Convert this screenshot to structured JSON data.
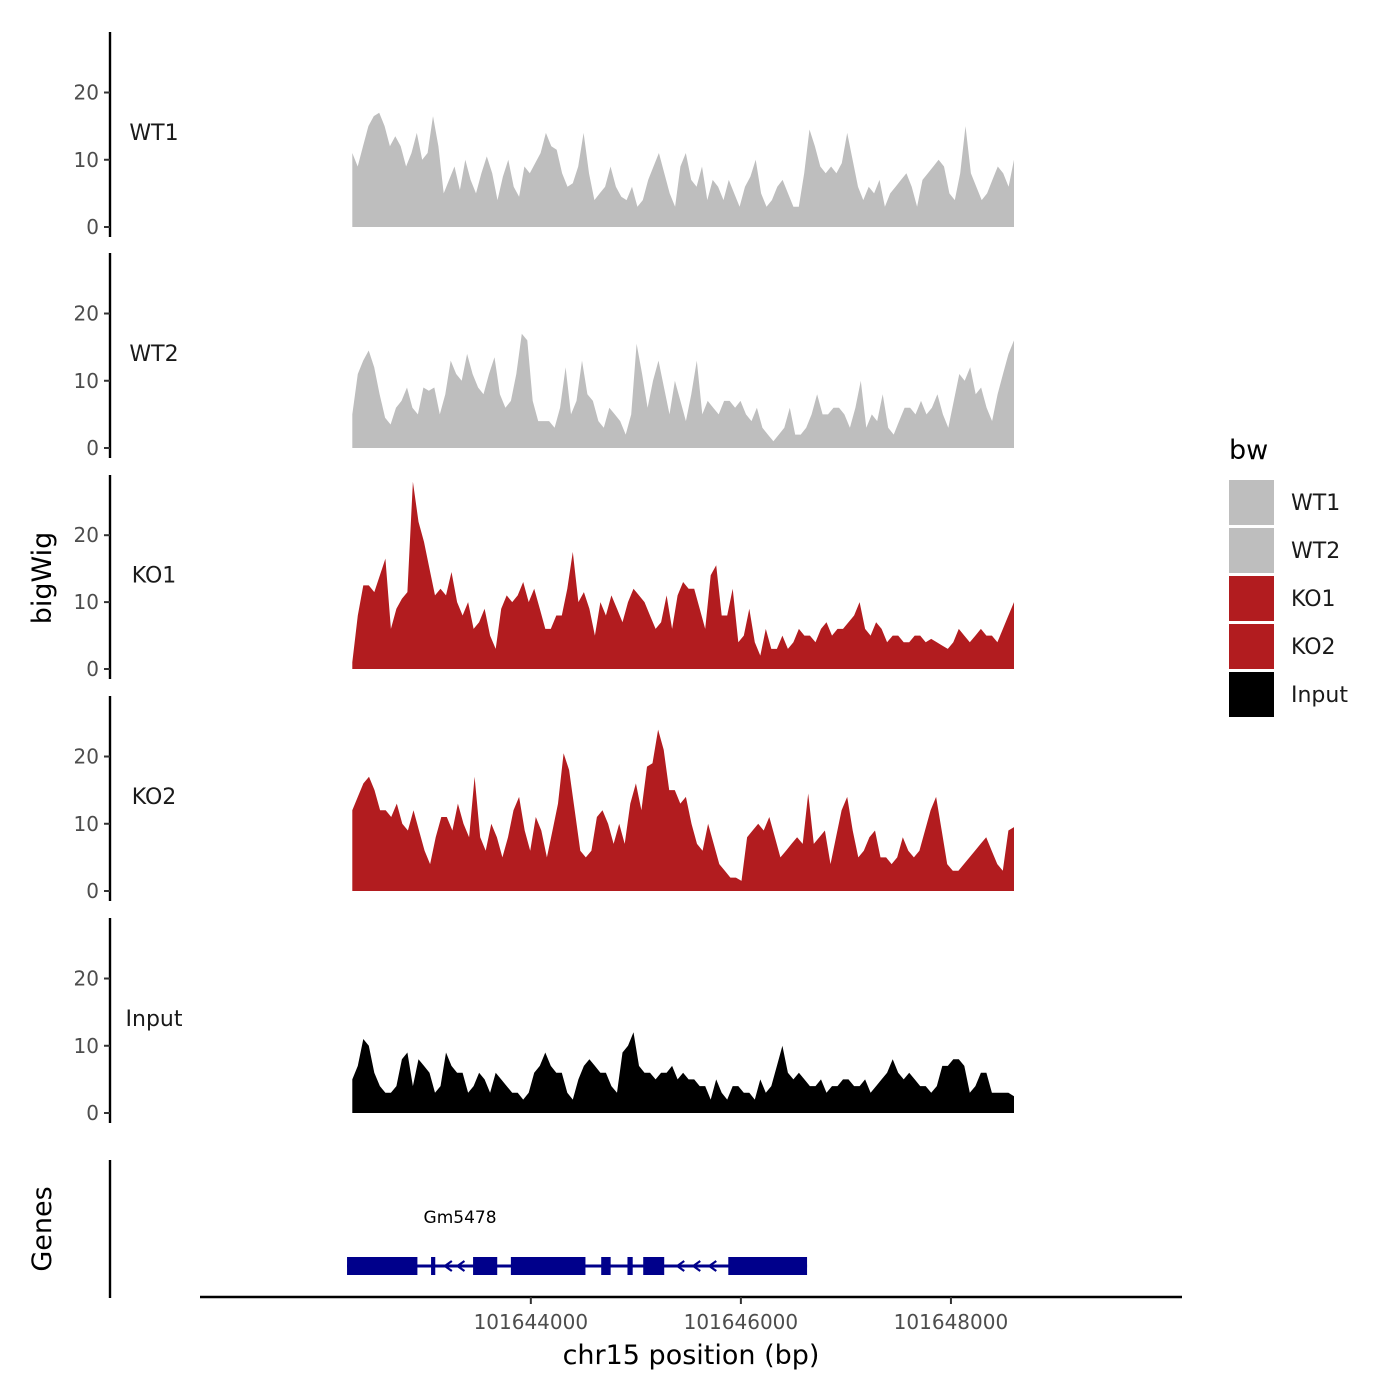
{
  "chart_data": {
    "type": "area",
    "chromosome": "chr15",
    "xlabel": "chr15 position (bp)",
    "ylabel": "bigWig",
    "genes_label": "Genes",
    "xlim": [
      101640850,
      101650200
    ],
    "x_ticks": [
      101644000,
      101646000,
      101648000
    ],
    "x_tick_labels": [
      "101644000",
      "101646000",
      "101648000"
    ],
    "ylim": [
      0,
      29
    ],
    "y_ticks": [
      0,
      10,
      20
    ],
    "y_tick_labels": [
      "0",
      "10",
      "20"
    ],
    "region": [
      101642300,
      101648600
    ],
    "legend": {
      "title": "bw",
      "entries": [
        {
          "label": "WT1",
          "color": "#bebebe"
        },
        {
          "label": "WT2",
          "color": "#bebebe"
        },
        {
          "label": "KO1",
          "color": "#b21c1f"
        },
        {
          "label": "KO2",
          "color": "#b21c1f"
        },
        {
          "label": "Input",
          "color": "#000000"
        }
      ]
    },
    "series": [
      {
        "name": "WT1",
        "color": "#bebebe",
        "values": [
          11,
          9,
          12,
          15,
          16.5,
          17,
          15,
          12,
          13.5,
          12,
          9,
          11,
          14,
          10,
          11,
          16.5,
          12,
          5,
          7,
          9,
          5.5,
          10,
          7,
          5,
          8,
          10.5,
          8,
          4,
          7.5,
          10,
          6,
          4.5,
          9,
          8,
          9.5,
          11,
          14,
          12,
          11.5,
          8,
          6,
          6.5,
          9,
          14,
          8,
          4,
          5,
          6,
          9,
          6,
          4.5,
          4,
          6,
          3,
          4,
          7,
          9,
          11,
          8,
          5,
          3,
          9,
          11,
          7,
          6,
          9,
          4,
          7,
          6,
          4,
          7,
          5,
          3,
          6,
          7.5,
          10,
          5,
          3,
          4,
          6,
          7,
          5,
          3,
          3,
          8,
          14.5,
          12,
          9,
          8,
          9,
          8,
          9.5,
          14,
          10,
          6,
          4,
          6,
          5,
          7,
          3,
          5,
          6,
          7,
          8,
          6,
          3,
          7,
          8,
          9,
          10,
          9,
          5,
          4,
          8,
          15,
          8,
          6,
          4,
          5,
          7,
          9,
          8,
          6,
          10
        ]
      },
      {
        "name": "WT2",
        "color": "#bebebe",
        "values": [
          5,
          11,
          13,
          14.5,
          12,
          8,
          4.5,
          3.5,
          6,
          7,
          9,
          6,
          5,
          9,
          8.5,
          9,
          5,
          8,
          13,
          11,
          10,
          14,
          11,
          9,
          8,
          11,
          13.5,
          8,
          6,
          7,
          11,
          17,
          16,
          7,
          4,
          4,
          4,
          3,
          6,
          12,
          5,
          7,
          13,
          8,
          7,
          4,
          3,
          6,
          5,
          4,
          2,
          5,
          15.5,
          11,
          6,
          10,
          13,
          9,
          5,
          10,
          7,
          4,
          8,
          13,
          5,
          7,
          6,
          5,
          7,
          7,
          6,
          7,
          5,
          4,
          6,
          3,
          2,
          1,
          2,
          3,
          6,
          2,
          2,
          3,
          5,
          8,
          5,
          5,
          6,
          6,
          5,
          3,
          6,
          10,
          3,
          5,
          4,
          8,
          3,
          2,
          4,
          6,
          6,
          5,
          7,
          5,
          6,
          8,
          5,
          3,
          7,
          11,
          10,
          12,
          8,
          9,
          6,
          4,
          8,
          11,
          14,
          16
        ]
      },
      {
        "name": "KO1",
        "color": "#b21c1f",
        "values": [
          1,
          8,
          12.5,
          12.5,
          11.5,
          14,
          16.5,
          6,
          9,
          10.5,
          11.5,
          28,
          22,
          19,
          15,
          11,
          12,
          11,
          14.5,
          10,
          8,
          10,
          6,
          7,
          9,
          5,
          3,
          9,
          11,
          10,
          11,
          13,
          10,
          12,
          9,
          6,
          6,
          8,
          8,
          12,
          17.5,
          10,
          11.5,
          9,
          5,
          10,
          8,
          11,
          9,
          7,
          10,
          12,
          11,
          10,
          8,
          6,
          7,
          11,
          6,
          11,
          13,
          12,
          12,
          9,
          6,
          14,
          15.5,
          8,
          8,
          12,
          4,
          5,
          9,
          4,
          2,
          6,
          3,
          3,
          5,
          3,
          4,
          6,
          5,
          5,
          4,
          6,
          7,
          5,
          6,
          6,
          7,
          8,
          10,
          6,
          5,
          7,
          6,
          4,
          5,
          5,
          4,
          4,
          5,
          5,
          4,
          4.5,
          4,
          3.5,
          3,
          4,
          6,
          5,
          4,
          5,
          6,
          5,
          5,
          4,
          6,
          8,
          10
        ]
      },
      {
        "name": "KO2",
        "color": "#b21c1f",
        "values": [
          12,
          14,
          16,
          17,
          15,
          12,
          12,
          11,
          13,
          10,
          9,
          12,
          9,
          6,
          4,
          8,
          11,
          11,
          9,
          13,
          10,
          8,
          17,
          8,
          6,
          10,
          8,
          5,
          8,
          12,
          14,
          9,
          6,
          11,
          9,
          5,
          9,
          13,
          20.5,
          18,
          12,
          6,
          5,
          6,
          11,
          12,
          10,
          7,
          10,
          7,
          13,
          16,
          12,
          18.5,
          19,
          24,
          21,
          15,
          15,
          13,
          14,
          10,
          7,
          6,
          10,
          7,
          4,
          3,
          2,
          2,
          1.5,
          8,
          9,
          10,
          9,
          11,
          8,
          5,
          6,
          7,
          8,
          7,
          14.5,
          7,
          8,
          9,
          4,
          8,
          12,
          14,
          9,
          5,
          6,
          8,
          9,
          5,
          5,
          4,
          5,
          8,
          6,
          5,
          6,
          9,
          12,
          14,
          9,
          4,
          3,
          3,
          4,
          5,
          6,
          7,
          8,
          6,
          4,
          3,
          9,
          9.5
        ]
      },
      {
        "name": "Input",
        "color": "#000000",
        "values": [
          5,
          7,
          11,
          10,
          6,
          4,
          3,
          3,
          4,
          8,
          9,
          4,
          8,
          7,
          6,
          3,
          4,
          9,
          7,
          6,
          6,
          3,
          4,
          6,
          5,
          3,
          6,
          5,
          4,
          3,
          3,
          2,
          3,
          6,
          7,
          9,
          7,
          6,
          6,
          3,
          2,
          5,
          7,
          8,
          7,
          6,
          6,
          4,
          3,
          9,
          10,
          12,
          7,
          6,
          6,
          5,
          6,
          6,
          7,
          5,
          6,
          5,
          5,
          4,
          4,
          2,
          5,
          3,
          2,
          4,
          4,
          3,
          3,
          2,
          5,
          3,
          4,
          7,
          10,
          6,
          5,
          6,
          5,
          4,
          4,
          5,
          3,
          4,
          4,
          5,
          5,
          4,
          4,
          5,
          3,
          4,
          5,
          6,
          8,
          6,
          5,
          6,
          5,
          4,
          4,
          3,
          4,
          7,
          7,
          8,
          8,
          7,
          3,
          4,
          6,
          6,
          3,
          3,
          3,
          3,
          2.5
        ]
      }
    ],
    "gene": {
      "name": "Gm5478",
      "start": 101642250,
      "end": 101646630,
      "strand": "-",
      "color": "#00008b",
      "exons": [
        [
          101642250,
          101642920
        ],
        [
          101643050,
          101643090
        ],
        [
          101643450,
          101643680
        ],
        [
          101643810,
          101644520
        ],
        [
          101644670,
          101644760
        ],
        [
          101644920,
          101644970
        ],
        [
          101645070,
          101645270
        ],
        [
          101645880,
          101646630
        ]
      ]
    }
  }
}
